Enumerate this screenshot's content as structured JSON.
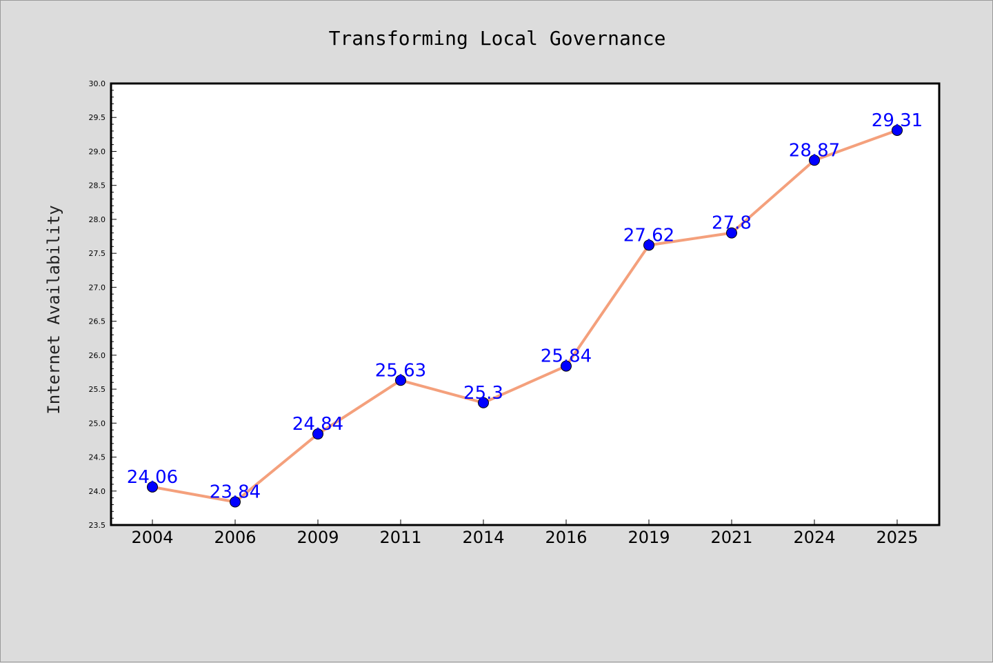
{
  "chart_data": {
    "type": "line",
    "title": "Transforming Local Governance",
    "xlabel": "",
    "ylabel": "Internet Availability",
    "categories": [
      "2004",
      "2006",
      "2009",
      "2011",
      "2014",
      "2016",
      "2019",
      "2021",
      "2024",
      "2025"
    ],
    "series": [
      {
        "values": [
          24.06,
          23.84,
          24.84,
          25.63,
          25.3,
          25.84,
          27.62,
          27.8,
          28.87,
          29.31
        ],
        "data_labels": [
          "24.06",
          "23.84",
          "24.84",
          "25.63",
          "25.3",
          "25.84",
          "27.62",
          "27.8",
          "28.87",
          "29.31"
        ],
        "line_color": "#f4a07c",
        "marker_color": "#0000ff"
      }
    ],
    "ylim": [
      23.5,
      30.0
    ],
    "yticks": [
      "23.5",
      "24.0",
      "24.5",
      "25.0",
      "25.5",
      "26.0",
      "26.5",
      "27.0",
      "27.5",
      "28.0",
      "28.5",
      "29.0",
      "29.5",
      "30.0"
    ],
    "grid": false,
    "legend": "none",
    "background_color": "#dcdcdc",
    "plot_background_color": "#ffffff"
  }
}
